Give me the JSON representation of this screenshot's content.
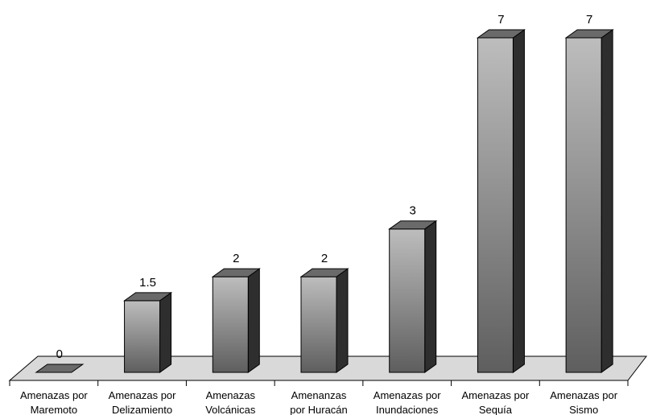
{
  "chart_data": {
    "type": "bar",
    "style": "3d-column",
    "categories": [
      [
        "Amenazas por",
        "Maremoto"
      ],
      [
        "Amenazas por",
        "Delizamiento"
      ],
      [
        "Amenazas",
        "Volcánicas"
      ],
      [
        "Amenanzas",
        "por Huracán"
      ],
      [
        "Amenazas por",
        "Inundaciones"
      ],
      [
        "Amenazas por",
        "Sequía"
      ],
      [
        "Amenazas por",
        "Sismo"
      ]
    ],
    "values": [
      0,
      1.5,
      2,
      2,
      3,
      7,
      7
    ],
    "data_labels": [
      "0",
      "1.5",
      "2",
      "2",
      "3",
      "7",
      "7"
    ],
    "title": "",
    "xlabel": "",
    "ylabel": "",
    "ylim": [
      0,
      7
    ],
    "grid": false,
    "legend": "none",
    "colors": {
      "bar_light": "#bdbdbd",
      "bar_dark": "#5e5e5e",
      "bar_top": "#6a6a6a",
      "bar_side": "#2e2e2e",
      "floor": "#d9d9d9",
      "outline": "#000000"
    }
  }
}
